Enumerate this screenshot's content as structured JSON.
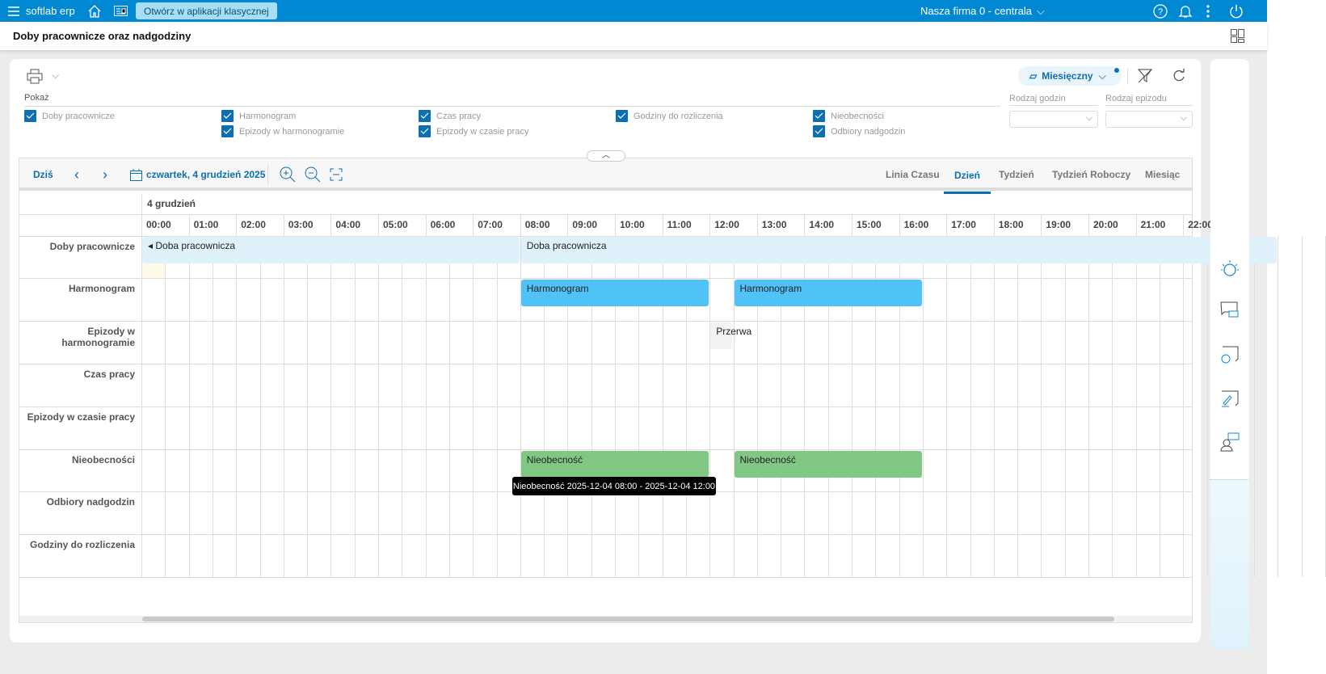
{
  "topbar": {
    "app_name": "softlab erp",
    "classic_button": "Otwórz w aplikacji klasycznej",
    "company": "Nasza firma 0 - centrala",
    "color": "#0089d2"
  },
  "page": {
    "title": "Doby pracownicze oraz nadgodziny"
  },
  "toolbar": {
    "view_selector": "Miesięczny"
  },
  "filters": {
    "show_label": "Pokaż",
    "checkboxes": [
      {
        "label": "Doby pracownicze",
        "checked": true
      },
      {
        "label": "Harmonogram",
        "checked": true
      },
      {
        "label": "Epizody w harmonogramie",
        "checked": true
      },
      {
        "label": "Czas pracy",
        "checked": true
      },
      {
        "label": "Epizody w czasie pracy",
        "checked": true
      },
      {
        "label": "Godziny do rozliczenia",
        "checked": true
      },
      {
        "label": "Nieobecności",
        "checked": true
      },
      {
        "label": "Odbiory nadgodzin",
        "checked": true
      }
    ],
    "hours_type_label": "Rodzaj godzin",
    "hours_type_value": "",
    "episode_type_label": "Rodzaj epizodu",
    "episode_type_value": ""
  },
  "scheduler": {
    "today": "Dziś",
    "date": "czwartek, 4 grudzień 2025",
    "tabs": [
      {
        "label": "Linia Czasu",
        "active": false
      },
      {
        "label": "Dzień",
        "active": true
      },
      {
        "label": "Tydzień",
        "active": false
      },
      {
        "label": "Tydzień Roboczy",
        "active": false
      },
      {
        "label": "Miesiąc",
        "active": false
      }
    ],
    "day_header": "4 grudzień",
    "hours": [
      "00:00",
      "01:00",
      "02:00",
      "03:00",
      "04:00",
      "05:00",
      "06:00",
      "07:00",
      "08:00",
      "09:00",
      "10:00",
      "11:00",
      "12:00",
      "13:00",
      "14:00",
      "15:00",
      "16:00",
      "17:00",
      "18:00",
      "19:00",
      "20:00",
      "21:00",
      "22:00"
    ],
    "rows": [
      "Doby pracownicze",
      "Harmonogram",
      "Epizody w harmonogramie",
      "Czas pracy",
      "Epizody w czasie pracy",
      "Nieobecności",
      "Odbiory nadgodzin",
      "Godziny do rozliczenia"
    ],
    "events": [
      {
        "row": 0,
        "label": "◂ Doba pracownicza",
        "start": "00:00",
        "end": "08:00",
        "color": "#dff2fb"
      },
      {
        "row": 0,
        "label": "Doba pracownicza",
        "start": "08:00",
        "end": "24:00",
        "color": "#dff2fb"
      },
      {
        "row": 1,
        "label": "Harmonogram",
        "start": "08:00",
        "end": "12:00",
        "color": "#4fc3f7"
      },
      {
        "row": 1,
        "label": "Harmonogram",
        "start": "12:30",
        "end": "16:30",
        "color": "#4fc3f7"
      },
      {
        "row": 2,
        "label": "Przerwa",
        "start": "12:00",
        "end": "12:30",
        "color": "#f3f3f3"
      },
      {
        "row": 5,
        "label": "Nieobecność",
        "start": "08:00",
        "end": "12:00",
        "color": "#81c784"
      },
      {
        "row": 5,
        "label": "Nieobecność",
        "start": "12:30",
        "end": "16:30",
        "color": "#81c784"
      }
    ],
    "tooltip": "Nieobecność 2025-12-04 08:00 - 2025-12-04 12:00"
  }
}
